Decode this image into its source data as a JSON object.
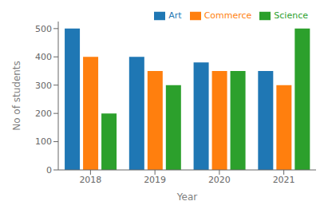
{
  "chart_data": {
    "type": "bar",
    "xlabel": "Year",
    "ylabel": "No of students",
    "categories": [
      "2018",
      "2019",
      "2020",
      "2021"
    ],
    "series": [
      {
        "name": "Art",
        "color": "#1f77b4",
        "values": [
          500,
          400,
          380,
          350
        ]
      },
      {
        "name": "Commerce",
        "color": "#ff7f0e",
        "values": [
          400,
          350,
          350,
          300
        ]
      },
      {
        "name": "Science",
        "color": "#2ca02c",
        "values": [
          200,
          300,
          350,
          500
        ]
      }
    ],
    "ylim": [
      0,
      525
    ],
    "yticks": [
      0,
      100,
      200,
      300,
      400,
      500
    ],
    "legend": "upper right",
    "grid": false
  }
}
